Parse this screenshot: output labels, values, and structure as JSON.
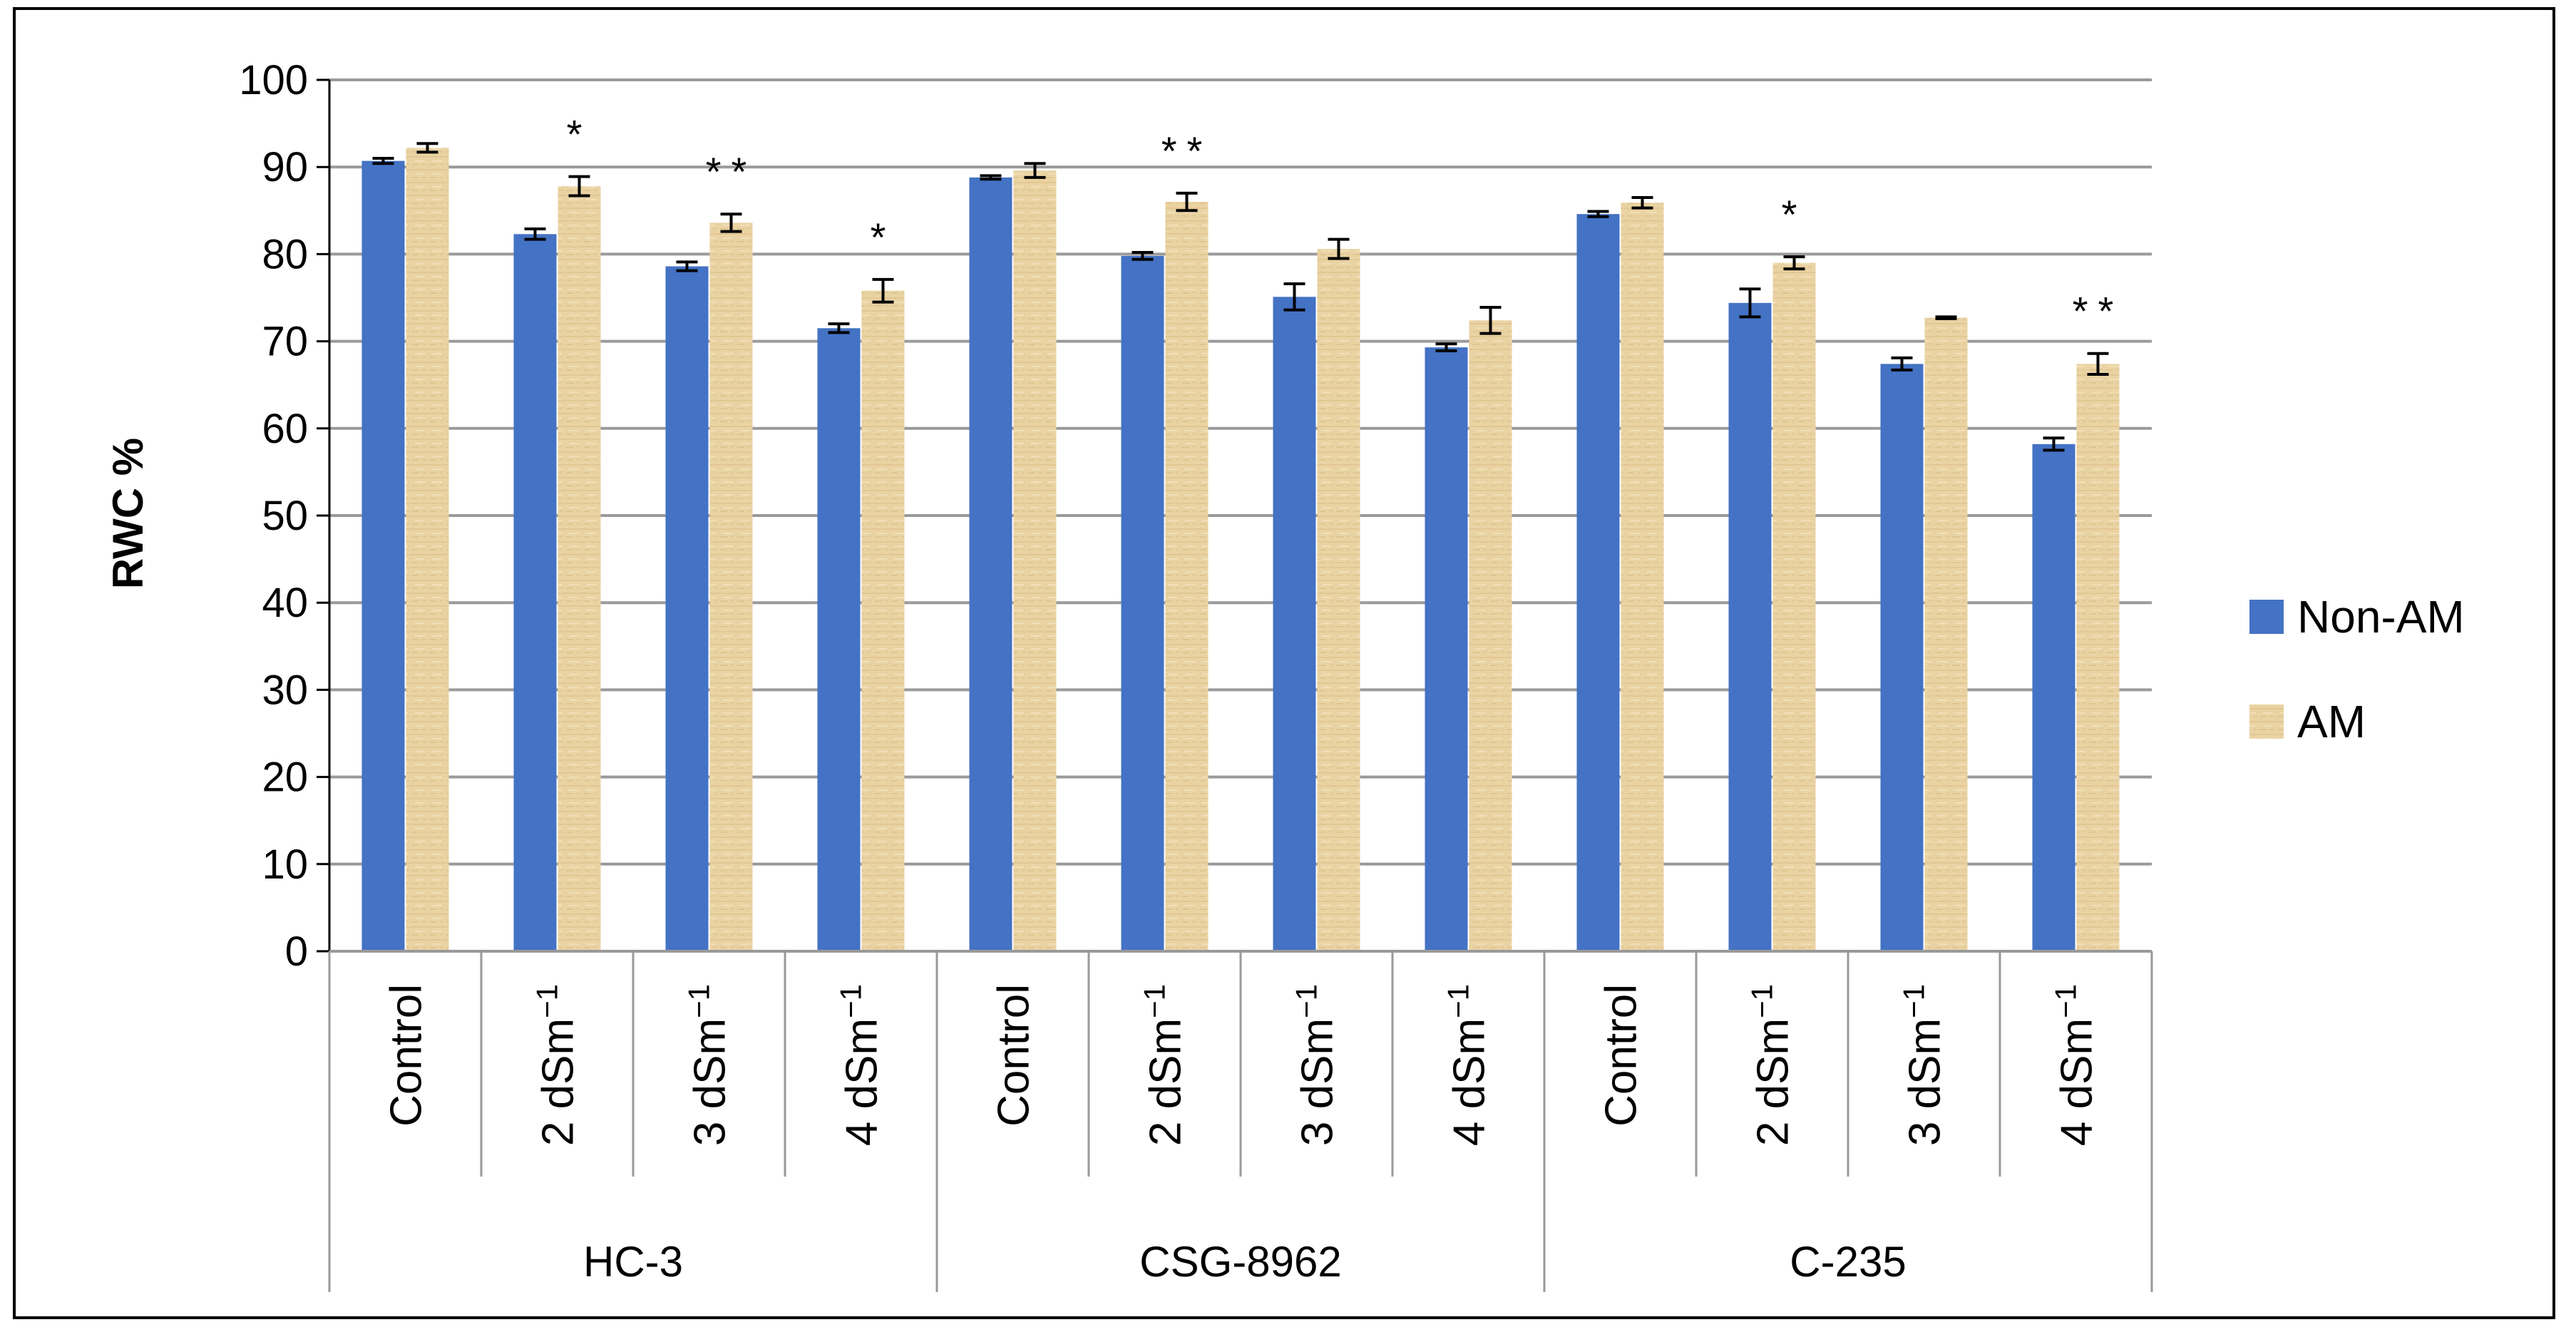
{
  "chart_data": {
    "type": "bar",
    "title": "",
    "ylabel": "RWC %",
    "xlabel": "",
    "ylim": [
      0,
      100
    ],
    "yticks": [
      0,
      10,
      20,
      30,
      40,
      50,
      60,
      70,
      80,
      90,
      100
    ],
    "grid": true,
    "legend_position": "right",
    "colors": {
      "Non-AM": "#4472C4",
      "AM": "#E8D2A0"
    },
    "groups": [
      "HC-3",
      "CSG-8962",
      "C-235"
    ],
    "categories": [
      {
        "group": "HC-3",
        "base": "Control",
        "sup": ""
      },
      {
        "group": "HC-3",
        "base": "2 dSm",
        "sup": "−1"
      },
      {
        "group": "HC-3",
        "base": "3 dSm",
        "sup": "−1"
      },
      {
        "group": "HC-3",
        "base": "4 dSm",
        "sup": "−1"
      },
      {
        "group": "CSG-8962",
        "base": "Control",
        "sup": ""
      },
      {
        "group": "CSG-8962",
        "base": "2 dSm",
        "sup": "−1"
      },
      {
        "group": "CSG-8962",
        "base": "3 dSm",
        "sup": "−1"
      },
      {
        "group": "CSG-8962",
        "base": "4 dSm",
        "sup": "−1"
      },
      {
        "group": "C-235",
        "base": "Control",
        "sup": ""
      },
      {
        "group": "C-235",
        "base": "2 dSm",
        "sup": "−1"
      },
      {
        "group": "C-235",
        "base": "3 dSm",
        "sup": "−1"
      },
      {
        "group": "C-235",
        "base": "4 dSm",
        "sup": "−1"
      }
    ],
    "series": [
      {
        "name": "Non-AM",
        "values": [
          90.7,
          82.3,
          78.6,
          71.5,
          88.8,
          79.8,
          75.1,
          69.3,
          84.6,
          74.4,
          67.4,
          58.2
        ],
        "errors": [
          0.3,
          0.6,
          0.5,
          0.5,
          0.2,
          0.4,
          1.5,
          0.4,
          0.3,
          1.6,
          0.7,
          0.7
        ]
      },
      {
        "name": "AM",
        "values": [
          92.2,
          87.8,
          83.6,
          75.8,
          89.6,
          86.0,
          80.6,
          72.4,
          85.9,
          79.0,
          72.7,
          67.4
        ],
        "errors": [
          0.5,
          1.1,
          1.0,
          1.3,
          0.8,
          1.0,
          1.1,
          1.5,
          0.6,
          0.7,
          0.1,
          1.2
        ]
      }
    ],
    "significance": [
      "",
      "*",
      "**",
      "*",
      "",
      "**",
      "",
      "",
      "",
      "*",
      "",
      "**"
    ]
  }
}
